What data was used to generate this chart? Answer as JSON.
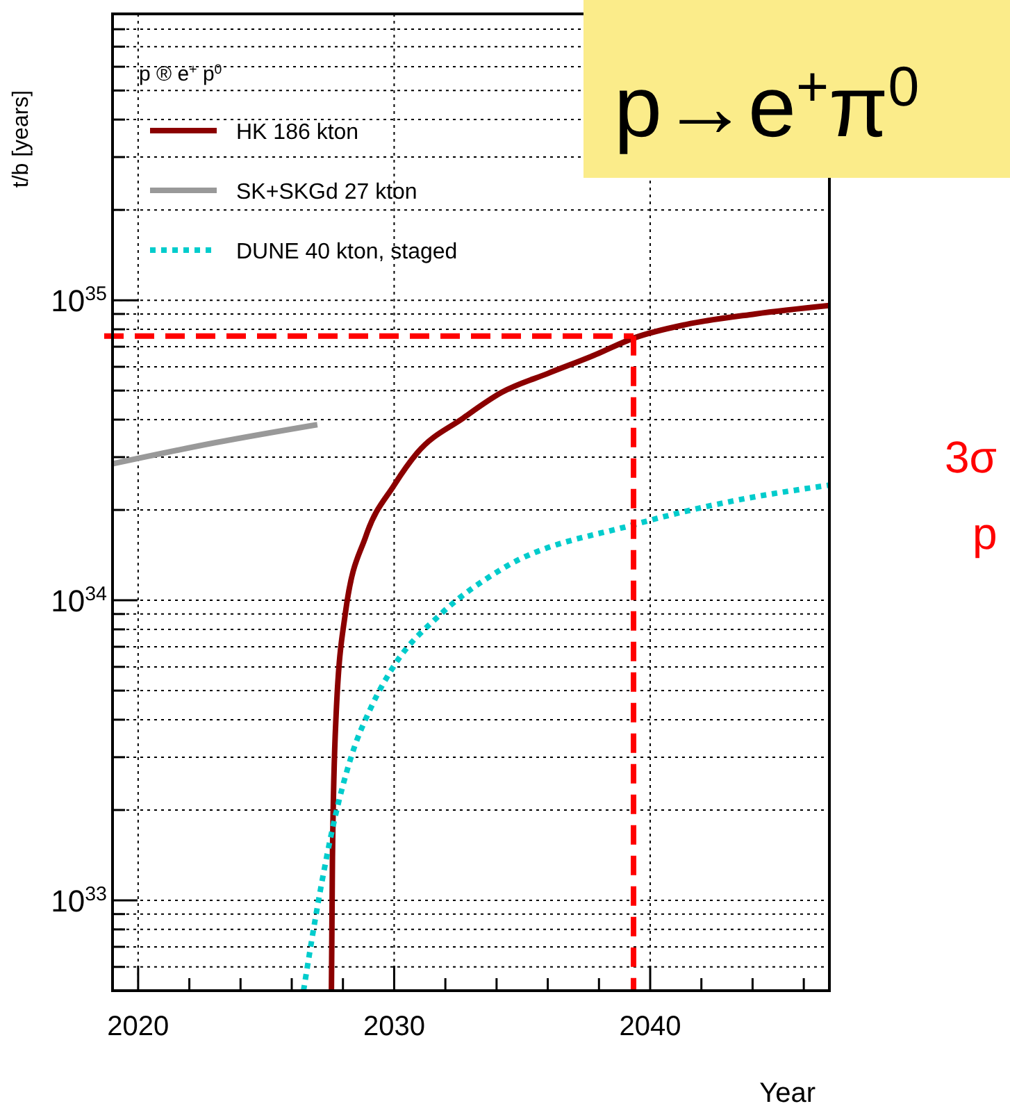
{
  "chart_data": {
    "type": "line",
    "xlabel": "Year",
    "ylabel": "t/b [years]",
    "legend_title": "p ® e$^{+}$ p$^{0}$",
    "legend": "top left",
    "log": "y",
    "grid": true,
    "xlim": [
      2019,
      2047
    ],
    "xticks": [
      2020,
      {
        "value": 2022,
        "label": null
      },
      {
        "value": 2024,
        "label": null
      },
      {
        "value": 2026,
        "label": null
      },
      {
        "value": 2028,
        "label": null
      },
      2030,
      {
        "value": 2032,
        "label": null
      },
      {
        "value": 2034,
        "label": null
      },
      {
        "value": 2036,
        "label": null
      },
      {
        "value": 2038,
        "label": null
      },
      2040,
      {
        "value": 2042,
        "label": null
      },
      {
        "value": 2044,
        "label": null
      },
      {
        "value": 2046,
        "label": null
      }
    ],
    "ylim": [
      5e+32,
      9e+35
    ],
    "yticks": [
      {
        "value": 6e+32,
        "label": null
      },
      {
        "value": 7e+32,
        "label": null
      },
      {
        "value": 8e+32,
        "label": null
      },
      {
        "value": 9e+32,
        "label": null
      },
      {
        "value": 1e+33,
        "label": "10$^{33}$"
      },
      {
        "value": 2e+33,
        "label": null
      },
      {
        "value": 3e+33,
        "label": null
      },
      {
        "value": 4e+33,
        "label": null
      },
      {
        "value": 5e+33,
        "label": null
      },
      {
        "value": 6e+33,
        "label": null
      },
      {
        "value": 7e+33,
        "label": null
      },
      {
        "value": 8e+33,
        "label": null
      },
      {
        "value": 9e+33,
        "label": null
      },
      {
        "value": 1e+34,
        "label": "10$^{34}$"
      },
      {
        "value": 2e+34,
        "label": null
      },
      {
        "value": 3e+34,
        "label": null
      },
      {
        "value": 4e+34,
        "label": null
      },
      {
        "value": 5e+34,
        "label": null
      },
      {
        "value": 6e+34,
        "label": null
      },
      {
        "value": 7e+34,
        "label": null
      },
      {
        "value": 8e+34,
        "label": null
      },
      {
        "value": 9e+34,
        "label": null
      },
      {
        "value": 1e+35,
        "label": "10$^{35}$"
      },
      {
        "value": 2e+35,
        "label": null
      },
      {
        "value": 3e+35,
        "label": null
      },
      {
        "value": 4e+35,
        "label": null
      },
      {
        "value": 5e+35,
        "label": null
      },
      {
        "value": 6e+35,
        "label": null
      },
      {
        "value": 7e+35,
        "label": null
      },
      {
        "value": 8e+35,
        "label": null
      }
    ],
    "series": [
      {
        "name": "HK 186 kton",
        "color": "#8b0000",
        "line_style": "solid",
        "x": [
          2027.55,
          2027.59,
          2027.73,
          2028.09,
          2028.9,
          2030.0,
          2030.9,
          2032.7,
          2034.2,
          2036.0,
          2037.8,
          2039.4,
          2041.4,
          2044.1,
          2047
        ],
        "values": [
          5e+32,
          1.4e+33,
          4.1e+33,
          9e+33,
          1.64e+34,
          2.42e+34,
          3.1e+34,
          4.05e+34,
          4.93e+34,
          5.7e+34,
          6.55e+34,
          7.5e+34,
          8.3e+34,
          9e+34,
          9.6e+34
        ]
      },
      {
        "name": "SK+SKGd 27 kton",
        "color": "#999999",
        "line_style": "solid",
        "x": [
          2019,
          2023,
          2027
        ],
        "values": [
          2.85e+34,
          3.35e+34,
          3.85e+34
        ]
      },
      {
        "name": "DUNE 40 kton, staged",
        "color": "#00cccc",
        "line_style": "dotted",
        "x": [
          2026.46,
          2027.1,
          2027.64,
          2028.36,
          2029.1,
          2030.0,
          2031.8,
          2034.2,
          2039.4,
          2043.2,
          2047
        ],
        "values": [
          5e+32,
          1.06e+33,
          1.81e+33,
          3.08e+33,
          4.4e+33,
          6.06e+33,
          8.96e+33,
          1.27e+34,
          1.79e+34,
          2.14e+34,
          2.42e+34
        ]
      }
    ],
    "ref_lines": [
      {
        "axis": "y",
        "value": 7.6e+34,
        "color": "#ff0000",
        "line_style": "dashed"
      },
      {
        "axis": "x",
        "value": 2039.35,
        "color": "#ff0000",
        "line_style": "dashed"
      }
    ],
    "annotations": [
      "p→e$^{+}$π$^{0}$",
      "3σ",
      "p"
    ]
  }
}
